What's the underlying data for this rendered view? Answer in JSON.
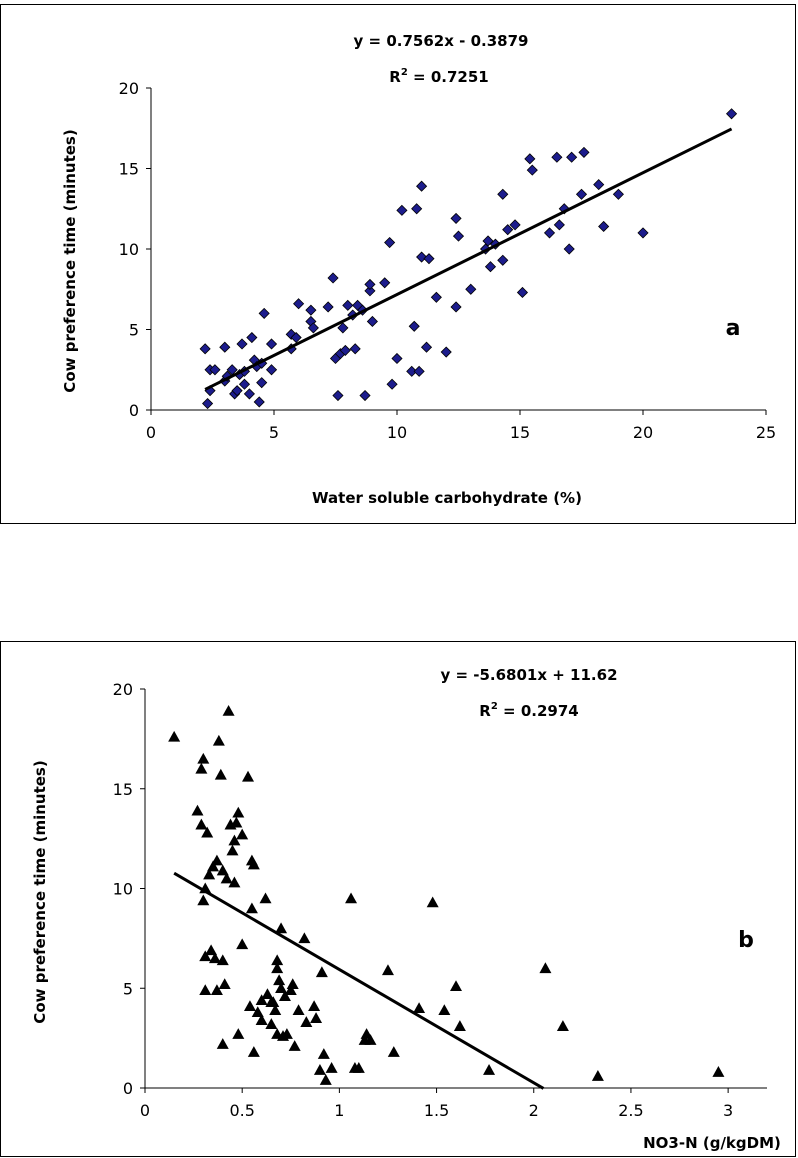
{
  "chart_data": [
    {
      "type": "scatter",
      "panel_label": "a",
      "equation": "y = 0.7562x - 0.3879",
      "r2_label": "R",
      "r2_sup": "2",
      "r2_value": " = 0.7251",
      "xlabel": "Water soluble carbohydrate (%)",
      "ylabel": "Cow preference time  (minutes)",
      "xlim": [
        0,
        25
      ],
      "ylim": [
        0,
        20
      ],
      "xticks": [
        "0",
        "5",
        "10",
        "15",
        "20",
        "25"
      ],
      "yticks": [
        "0",
        "5",
        "10",
        "15",
        "20"
      ],
      "marker": "diamond",
      "marker_color": "#1c1c8c",
      "trendline": {
        "slope": 0.7562,
        "intercept": -0.3879,
        "x_range": [
          2.2,
          23.6
        ]
      },
      "points": [
        [
          2.2,
          3.8
        ],
        [
          2.3,
          0.4
        ],
        [
          2.4,
          1.2
        ],
        [
          2.4,
          2.5
        ],
        [
          2.6,
          2.5
        ],
        [
          3.0,
          1.8
        ],
        [
          3.0,
          3.9
        ],
        [
          3.1,
          2.1
        ],
        [
          3.3,
          2.5
        ],
        [
          3.4,
          1.0
        ],
        [
          3.5,
          1.2
        ],
        [
          3.6,
          2.2
        ],
        [
          3.7,
          4.1
        ],
        [
          3.8,
          1.6
        ],
        [
          3.8,
          2.4
        ],
        [
          4.0,
          1.0
        ],
        [
          4.1,
          4.5
        ],
        [
          4.2,
          3.1
        ],
        [
          4.3,
          2.7
        ],
        [
          4.4,
          0.5
        ],
        [
          4.5,
          1.7
        ],
        [
          4.5,
          2.9
        ],
        [
          4.6,
          6.0
        ],
        [
          4.9,
          4.1
        ],
        [
          4.9,
          2.5
        ],
        [
          5.7,
          3.8
        ],
        [
          5.7,
          4.7
        ],
        [
          5.9,
          4.5
        ],
        [
          6.0,
          6.6
        ],
        [
          6.5,
          6.2
        ],
        [
          6.5,
          5.5
        ],
        [
          6.6,
          5.1
        ],
        [
          7.2,
          6.4
        ],
        [
          7.4,
          8.2
        ],
        [
          7.5,
          3.2
        ],
        [
          7.6,
          0.9
        ],
        [
          7.7,
          3.5
        ],
        [
          7.8,
          5.1
        ],
        [
          7.9,
          3.7
        ],
        [
          8.0,
          6.5
        ],
        [
          8.2,
          5.9
        ],
        [
          8.3,
          3.8
        ],
        [
          8.4,
          6.5
        ],
        [
          8.6,
          6.2
        ],
        [
          8.7,
          0.9
        ],
        [
          8.9,
          7.4
        ],
        [
          8.9,
          7.8
        ],
        [
          9.0,
          5.5
        ],
        [
          9.5,
          7.9
        ],
        [
          9.7,
          10.4
        ],
        [
          9.8,
          1.6
        ],
        [
          10.0,
          3.2
        ],
        [
          10.2,
          12.4
        ],
        [
          10.6,
          2.4
        ],
        [
          10.7,
          5.2
        ],
        [
          10.8,
          12.5
        ],
        [
          10.9,
          2.4
        ],
        [
          11.0,
          9.5
        ],
        [
          11.0,
          13.9
        ],
        [
          11.2,
          3.9
        ],
        [
          11.3,
          9.4
        ],
        [
          11.6,
          7.0
        ],
        [
          12.0,
          3.6
        ],
        [
          12.4,
          6.4
        ],
        [
          12.4,
          11.9
        ],
        [
          12.5,
          10.8
        ],
        [
          13.0,
          7.5
        ],
        [
          13.6,
          10.0
        ],
        [
          13.7,
          10.5
        ],
        [
          13.8,
          8.9
        ],
        [
          14.0,
          10.3
        ],
        [
          14.3,
          9.3
        ],
        [
          14.3,
          13.4
        ],
        [
          14.5,
          11.2
        ],
        [
          14.8,
          11.5
        ],
        [
          15.1,
          7.3
        ],
        [
          15.4,
          15.6
        ],
        [
          15.5,
          14.9
        ],
        [
          16.2,
          11.0
        ],
        [
          16.5,
          15.7
        ],
        [
          16.6,
          11.5
        ],
        [
          16.8,
          12.5
        ],
        [
          17.0,
          10.0
        ],
        [
          17.1,
          15.7
        ],
        [
          17.5,
          13.4
        ],
        [
          17.6,
          16.0
        ],
        [
          18.2,
          14.0
        ],
        [
          18.4,
          11.4
        ],
        [
          19.0,
          13.4
        ],
        [
          20.0,
          11.0
        ],
        [
          23.6,
          18.4
        ]
      ]
    },
    {
      "type": "scatter",
      "panel_label": "b",
      "equation": "y = -5.6801x + 11.62",
      "r2_label": "R",
      "r2_sup": "2",
      "r2_value": " = 0.2974",
      "xlabel": "NO3-N (g/kgDM)",
      "ylabel": "Cow preference time  (minutes)",
      "xlim": [
        0,
        3.2
      ],
      "ylim": [
        0,
        20
      ],
      "xticks": [
        "0",
        "0.5",
        "1",
        "1.5",
        "2",
        "2.5",
        "3"
      ],
      "xtick_values": [
        0,
        0.5,
        1,
        1.5,
        2,
        2.5,
        3
      ],
      "yticks": [
        "0",
        "5",
        "10",
        "15",
        "20"
      ],
      "marker": "triangle",
      "marker_color": "#000000",
      "trendline": {
        "slope": -5.6801,
        "intercept": 11.62,
        "x_range": [
          0.15,
          2.05
        ]
      },
      "points": [
        [
          0.15,
          17.6
        ],
        [
          0.27,
          13.9
        ],
        [
          0.29,
          13.2
        ],
        [
          0.29,
          16.0
        ],
        [
          0.3,
          16.5
        ],
        [
          0.3,
          9.4
        ],
        [
          0.31,
          10.0
        ],
        [
          0.31,
          4.9
        ],
        [
          0.31,
          6.6
        ],
        [
          0.32,
          12.8
        ],
        [
          0.33,
          10.7
        ],
        [
          0.34,
          6.9
        ],
        [
          0.35,
          11.1
        ],
        [
          0.36,
          6.5
        ],
        [
          0.37,
          4.9
        ],
        [
          0.37,
          11.4
        ],
        [
          0.38,
          17.4
        ],
        [
          0.39,
          15.7
        ],
        [
          0.4,
          10.9
        ],
        [
          0.4,
          6.4
        ],
        [
          0.4,
          2.2
        ],
        [
          0.41,
          5.2
        ],
        [
          0.42,
          10.5
        ],
        [
          0.43,
          18.9
        ],
        [
          0.44,
          13.2
        ],
        [
          0.45,
          11.9
        ],
        [
          0.46,
          12.4
        ],
        [
          0.46,
          10.3
        ],
        [
          0.47,
          13.3
        ],
        [
          0.48,
          13.8
        ],
        [
          0.48,
          2.7
        ],
        [
          0.5,
          7.2
        ],
        [
          0.5,
          12.7
        ],
        [
          0.53,
          15.6
        ],
        [
          0.54,
          4.1
        ],
        [
          0.55,
          11.4
        ],
        [
          0.55,
          9.0
        ],
        [
          0.56,
          11.2
        ],
        [
          0.56,
          1.8
        ],
        [
          0.58,
          3.8
        ],
        [
          0.6,
          4.4
        ],
        [
          0.6,
          3.4
        ],
        [
          0.62,
          9.5
        ],
        [
          0.63,
          4.7
        ],
        [
          0.65,
          4.3
        ],
        [
          0.65,
          3.2
        ],
        [
          0.66,
          4.3
        ],
        [
          0.67,
          3.9
        ],
        [
          0.68,
          6.4
        ],
        [
          0.68,
          2.7
        ],
        [
          0.68,
          6.0
        ],
        [
          0.69,
          5.4
        ],
        [
          0.7,
          5.0
        ],
        [
          0.7,
          8.0
        ],
        [
          0.71,
          2.6
        ],
        [
          0.72,
          4.6
        ],
        [
          0.73,
          2.7
        ],
        [
          0.75,
          4.9
        ],
        [
          0.76,
          5.2
        ],
        [
          0.77,
          2.1
        ],
        [
          0.79,
          3.9
        ],
        [
          0.82,
          7.5
        ],
        [
          0.83,
          3.3
        ],
        [
          0.87,
          4.1
        ],
        [
          0.88,
          3.5
        ],
        [
          0.9,
          0.9
        ],
        [
          0.91,
          5.8
        ],
        [
          0.92,
          1.7
        ],
        [
          0.93,
          0.4
        ],
        [
          0.96,
          1.0
        ],
        [
          1.06,
          9.5
        ],
        [
          1.08,
          1.0
        ],
        [
          1.1,
          1.0
        ],
        [
          1.13,
          2.4
        ],
        [
          1.14,
          2.7
        ],
        [
          1.16,
          2.4
        ],
        [
          1.25,
          5.9
        ],
        [
          1.28,
          1.8
        ],
        [
          1.41,
          4.0
        ],
        [
          1.48,
          9.3
        ],
        [
          1.54,
          3.9
        ],
        [
          1.6,
          5.1
        ],
        [
          1.62,
          3.1
        ],
        [
          1.77,
          0.9
        ],
        [
          2.06,
          6.0
        ],
        [
          2.15,
          3.1
        ],
        [
          2.33,
          0.6
        ],
        [
          2.95,
          0.8
        ]
      ]
    }
  ]
}
